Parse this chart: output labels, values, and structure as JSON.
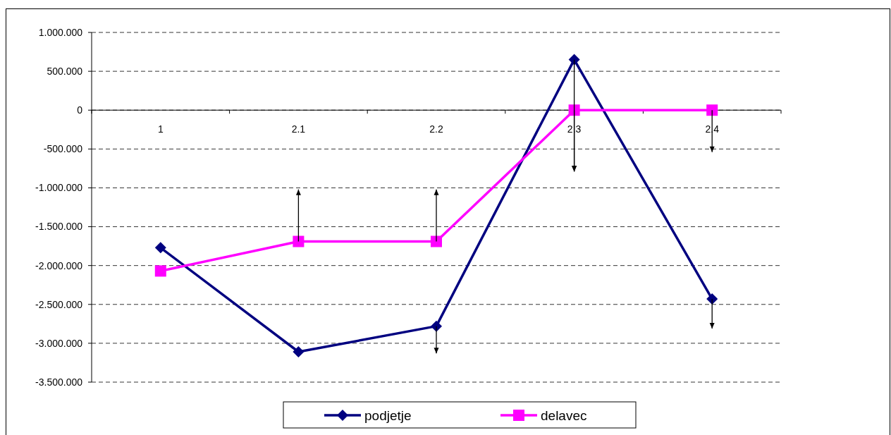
{
  "chart_data": {
    "type": "line",
    "categories": [
      "1",
      "2.1",
      "2.2",
      "2.3",
      "2.4"
    ],
    "series": [
      {
        "name": "podjetje",
        "color": "#000080",
        "marker": "diamond",
        "values": [
          -1770000,
          -3110000,
          -2780000,
          650000,
          -2430000
        ],
        "errors": [
          null,
          null,
          [
            -3130000,
            -2780000
          ],
          [
            -790000,
            650000
          ],
          [
            -2810000,
            -2430000
          ]
        ]
      },
      {
        "name": "delavec",
        "color": "#ff00ff",
        "marker": "square",
        "values": [
          -2070000,
          -1690000,
          -1690000,
          0,
          0
        ],
        "errors": [
          null,
          [
            -1690000,
            -1020000
          ],
          [
            -1690000,
            -1020000
          ],
          [
            -790000,
            0
          ],
          [
            -540000,
            0
          ]
        ]
      }
    ],
    "ylim": [
      -3500000,
      1000000
    ],
    "yticks": [
      {
        "value": -3500000,
        "label": "-3.500.000"
      },
      {
        "value": -3000000,
        "label": "-3.000.000"
      },
      {
        "value": -2500000,
        "label": "-2.500.000"
      },
      {
        "value": -2000000,
        "label": "-2.000.000"
      },
      {
        "value": -1500000,
        "label": "-1.500.000"
      },
      {
        "value": -1000000,
        "label": "-1.000.000"
      },
      {
        "value": -500000,
        "label": "-500.000"
      },
      {
        "value": 0,
        "label": "0"
      },
      {
        "value": 500000,
        "label": "500.000"
      },
      {
        "value": 1000000,
        "label": "1.000.000"
      }
    ],
    "grid": "y",
    "legend": "bottom",
    "line_style": "solid"
  }
}
